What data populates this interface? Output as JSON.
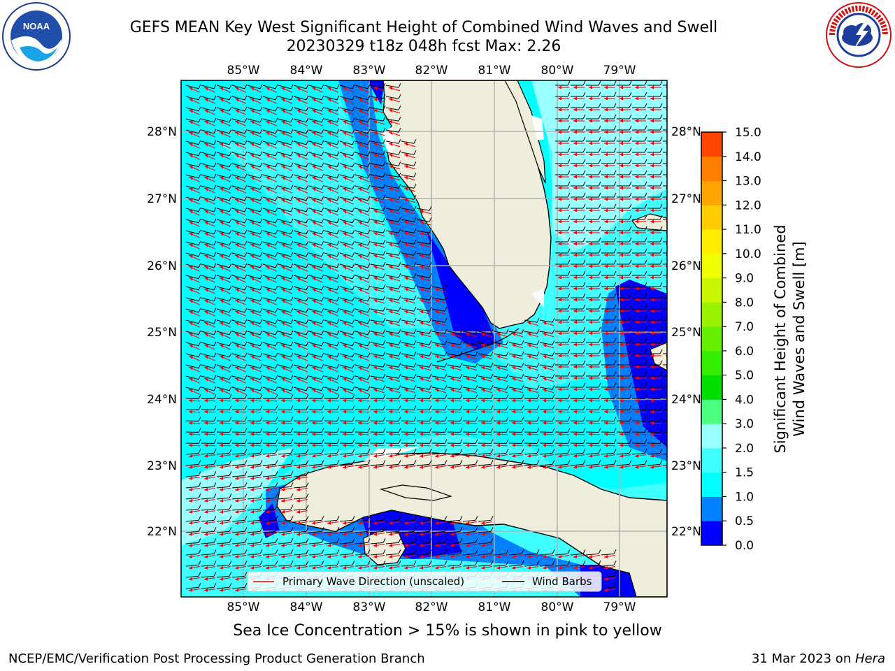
{
  "title": {
    "line1": "GEFS MEAN Key West Significant Height of Combined Wind Waves and Swell",
    "line2": "20230329 t18z 048h fcst   Max: 2.26"
  },
  "logos": {
    "left": {
      "icon": "noaa-logo",
      "text": "NOAA"
    },
    "right": {
      "icon": "national-weather-service-logo",
      "text": "NATIONAL WEATHER SERVICE"
    }
  },
  "map": {
    "lon_labels": [
      "85°W",
      "84°W",
      "83°W",
      "82°W",
      "81°W",
      "80°W",
      "79°W"
    ],
    "lat_labels": [
      "28°N",
      "27°N",
      "26°N",
      "25°N",
      "24°N",
      "23°N",
      "22°N"
    ],
    "legend": {
      "wave_direction": "Primary Wave Direction (unscaled)",
      "wind_barbs": "Wind Barbs"
    },
    "colors": {
      "land": "#efeedd",
      "wave_arrows": "#ff0000",
      "wind_barbs": "#000000",
      "grid": "#b0b0b0"
    }
  },
  "colorbar": {
    "label_line1": "Significant Height of Combined",
    "label_line2": "Wind Waves and Swell [m]",
    "ticks": [
      "15.0",
      "14.0",
      "13.0",
      "12.0",
      "11.0",
      "10.0",
      "9.0",
      "8.0",
      "7.0",
      "6.0",
      "5.0",
      "4.0",
      "3.0",
      "2.0",
      "1.5",
      "1.0",
      "0.5",
      "0.0"
    ],
    "colors_bottom_to_top": [
      "#0000ff",
      "#007fff",
      "#00ffff",
      "#40ffff",
      "#99ffff",
      "#4cff80",
      "#00e000",
      "#33ee00",
      "#66f000",
      "#99f200",
      "#c8f500",
      "#f0ff00",
      "#ffee00",
      "#ffcc00",
      "#ffa500",
      "#ff7f00",
      "#ff4500"
    ]
  },
  "footer": {
    "ice_note": "Sea Ice Concentration > 15% is shown in pink to yellow",
    "credit": "NCEP/EMC/Verification Post Processing Product Generation Branch",
    "date": "31 Mar 2023 on ",
    "machine": "Hera"
  }
}
